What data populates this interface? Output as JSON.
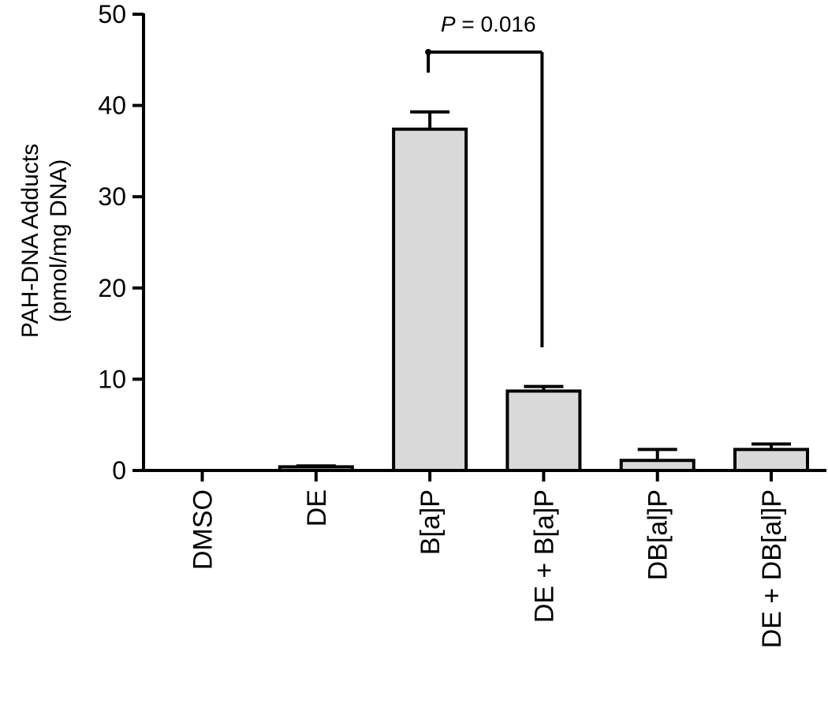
{
  "chart_data": {
    "type": "bar",
    "categories": [
      "DMSO",
      "DE",
      "B[a]P",
      "DE + B[a]P",
      "DB[al]P",
      "DE + DB[al]P"
    ],
    "values": [
      0,
      0.4,
      37.4,
      8.7,
      1.1,
      2.3
    ],
    "errors": [
      0,
      0.1,
      1.9,
      0.5,
      1.2,
      0.6
    ],
    "ylabel": "PAH-DNA Adducts",
    "ylabel_units": "(pmol/mg DNA)",
    "ylim": [
      0,
      50
    ],
    "yticks": [
      0,
      10,
      20,
      30,
      40,
      50
    ],
    "bar_color": "#d9d9d9",
    "annotation": {
      "from_category": "B[a]P",
      "to_category": "DE + B[a]P",
      "p_symbol": "P",
      "p_text": " = 0.016"
    }
  }
}
